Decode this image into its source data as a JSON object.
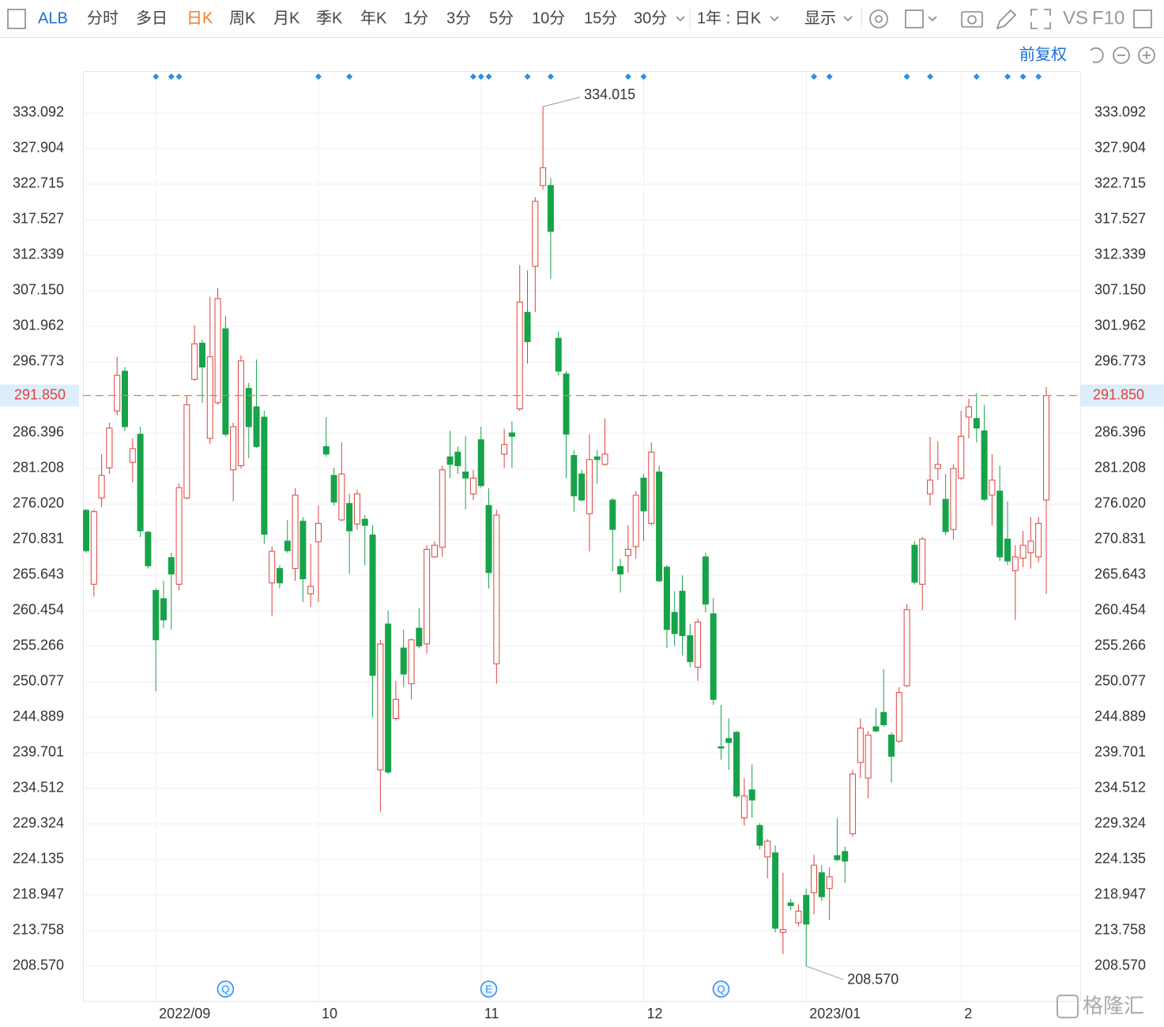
{
  "toolbar": {
    "symbol": "ALB",
    "periods": [
      "分时",
      "多日",
      "日K",
      "周K",
      "月K",
      "季K",
      "年K",
      "1分",
      "3分",
      "5分",
      "10分",
      "15分",
      "30分"
    ],
    "range": "1年 : 日K",
    "display": "显示",
    "compare": "VS",
    "f10": "F10",
    "adjust": "前复权"
  },
  "watermark": "格隆汇",
  "chart_data": {
    "type": "candlestick",
    "categories": [
      null,
      null,
      null,
      null,
      null,
      null,
      null,
      null,
      null,
      "2022/09",
      null,
      null,
      null,
      null,
      null,
      null,
      null,
      null,
      null,
      null,
      null,
      null,
      null,
      null,
      null,
      null,
      null,
      null,
      null,
      null,
      "10",
      null,
      null,
      null,
      null,
      null,
      null,
      null,
      null,
      null,
      null,
      null,
      null,
      null,
      null,
      null,
      null,
      null,
      null,
      null,
      null,
      "11",
      null,
      null,
      null,
      null,
      null,
      null,
      null,
      null,
      null,
      null,
      null,
      null,
      null,
      null,
      null,
      null,
      null,
      null,
      null,
      null,
      "12",
      null,
      null,
      null,
      null,
      null,
      null,
      null,
      null,
      null,
      null,
      null,
      null,
      null,
      null,
      null,
      null,
      null,
      null,
      null,
      null,
      "2023/01",
      null,
      null,
      null,
      null,
      null,
      null,
      null,
      null,
      null,
      null,
      null,
      null,
      null,
      null,
      null,
      null,
      null,
      null,
      null,
      "2",
      null,
      null,
      null,
      null,
      null,
      null,
      null,
      null,
      null,
      null,
      null
    ],
    "open": [
      275.1,
      264.3,
      276.9,
      281.3,
      289.6,
      295.4,
      282.1,
      286.2,
      271.9,
      263.4,
      262.2,
      268.2,
      264.3,
      276.9,
      294.2,
      299.5,
      285.6,
      290.8,
      301.6,
      281.0,
      281.6,
      292.9,
      290.2,
      288.7,
      264.5,
      266.6,
      270.6,
      266.6,
      273.5,
      262.9,
      270.5,
      284.4,
      280.2,
      273.7,
      276.1,
      273.1,
      273.8,
      271.5,
      237.2,
      258.5,
      244.7,
      255.0,
      249.8,
      257.9,
      255.6,
      268.3,
      269.7,
      282.9,
      283.6,
      280.7,
      277.5,
      285.4,
      275.8,
      252.7,
      283.3,
      286.4,
      289.9,
      304.0,
      310.7,
      322.5,
      322.5,
      300.2,
      295.0,
      283.1,
      280.4,
      274.6,
      282.9,
      281.8,
      276.6,
      266.9,
      268.5,
      269.8,
      279.8,
      273.2,
      280.7,
      266.8,
      260.2,
      263.3,
      256.8,
      252.2,
      268.3,
      260.0,
      240.6,
      241.8,
      242.7,
      230.2,
      234.3,
      229.1,
      224.5,
      225.1,
      213.5,
      217.8,
      214.9,
      218.9,
      219.3,
      222.2,
      219.9,
      224.7,
      225.3,
      227.9,
      238.3,
      236.0,
      243.5,
      245.6,
      242.3,
      241.4,
      249.5,
      270.0,
      264.3,
      277.5,
      281.2,
      276.7,
      272.3,
      279.8,
      288.7,
      288.5,
      286.7,
      277.3,
      277.9,
      270.9,
      266.3,
      268.1,
      268.9,
      268.3,
      276.6
    ],
    "high": [
      275.3,
      275.2,
      283.3,
      287.9,
      297.5,
      296.0,
      285.6,
      287.3,
      272.1,
      263.7,
      264.8,
      268.9,
      279.0,
      291.9,
      302.1,
      300.0,
      306.3,
      307.5,
      303.5,
      287.9,
      297.7,
      293.7,
      297.1,
      289.6,
      269.8,
      267.1,
      273.7,
      278.3,
      274.1,
      270.2,
      275.8,
      288.7,
      281.3,
      285.0,
      277.5,
      278.1,
      274.4,
      272.9,
      256.2,
      260.5,
      250.2,
      257.7,
      256.4,
      260.8,
      270.0,
      270.6,
      281.6,
      286.7,
      284.4,
      285.9,
      281.0,
      287.3,
      278.3,
      275.2,
      287.0,
      288.1,
      310.9,
      310.1,
      320.8,
      334.015,
      323.6,
      301.2,
      295.4,
      283.9,
      281.0,
      286.2,
      283.9,
      288.5,
      276.9,
      268.0,
      272.9,
      277.9,
      280.4,
      285.0,
      281.6,
      267.1,
      263.3,
      265.6,
      258.5,
      259.3,
      268.9,
      262.3,
      246.7,
      244.7,
      242.9,
      236.0,
      238.0,
      229.4,
      227.1,
      226.2,
      222.2,
      218.4,
      217.6,
      219.9,
      224.8,
      223.3,
      223.0,
      230.2,
      226.0,
      237.2,
      244.7,
      242.9,
      246.2,
      251.9,
      242.7,
      249.3,
      261.4,
      270.6,
      271.2,
      285.8,
      285.2,
      280.4,
      281.8,
      289.6,
      291.4,
      292.2,
      290.5,
      283.3,
      281.6,
      276.4,
      270.0,
      272.1,
      274.1,
      274.1,
      293.1
    ],
    "low": [
      268.9,
      262.5,
      275.6,
      280.4,
      289.0,
      286.7,
      279.2,
      271.2,
      266.6,
      248.7,
      257.9,
      257.7,
      263.4,
      276.7,
      294.0,
      290.8,
      284.8,
      290.5,
      285.9,
      276.4,
      281.2,
      282.7,
      284.2,
      270.2,
      259.6,
      263.7,
      268.9,
      264.8,
      261.7,
      261.0,
      261.7,
      282.9,
      275.8,
      273.5,
      265.8,
      272.3,
      267.1,
      244.9,
      231.1,
      236.6,
      244.4,
      249.3,
      247.5,
      255.0,
      254.2,
      268.2,
      268.3,
      279.8,
      280.4,
      275.2,
      276.6,
      278.4,
      263.7,
      249.8,
      281.3,
      281.3,
      289.6,
      296.5,
      304.0,
      321.9,
      308.9,
      294.8,
      279.8,
      274.9,
      276.4,
      269.1,
      279.0,
      281.6,
      266.2,
      263.1,
      266.0,
      268.0,
      270.6,
      272.9,
      264.6,
      255.0,
      255.3,
      253.9,
      252.2,
      250.2,
      260.2,
      246.7,
      238.7,
      237.2,
      233.1,
      229.1,
      230.2,
      225.6,
      221.4,
      213.5,
      210.3,
      216.7,
      214.4,
      208.57,
      216.1,
      218.1,
      215.3,
      223.9,
      220.7,
      227.4,
      236.0,
      233.1,
      242.7,
      243.5,
      235.4,
      241.2,
      249.3,
      264.3,
      260.5,
      275.8,
      279.5,
      271.5,
      270.8,
      279.5,
      285.6,
      285.0,
      276.4,
      272.9,
      267.7,
      267.1,
      259.1,
      266.8,
      266.6,
      267.5,
      262.9
    ],
    "close": [
      269.2,
      274.9,
      280.2,
      287.1,
      294.8,
      287.3,
      284.1,
      272.1,
      267.0,
      256.2,
      259.1,
      265.8,
      278.4,
      290.5,
      299.4,
      296.0,
      297.5,
      306.0,
      286.2,
      287.3,
      296.9,
      287.3,
      284.4,
      271.6,
      269.1,
      264.5,
      269.2,
      277.3,
      265.1,
      264.0,
      273.2,
      283.3,
      276.3,
      280.4,
      272.1,
      277.5,
      272.9,
      251.0,
      255.6,
      236.9,
      247.5,
      251.2,
      256.2,
      255.3,
      269.4,
      270.0,
      281.0,
      281.8,
      281.6,
      279.8,
      279.8,
      278.7,
      266.0,
      274.4,
      284.7,
      285.9,
      305.5,
      299.7,
      320.2,
      325.1,
      315.8,
      295.4,
      286.2,
      277.2,
      276.6,
      282.5,
      282.5,
      283.3,
      272.3,
      265.8,
      269.4,
      277.3,
      275.0,
      283.6,
      264.8,
      257.7,
      257.1,
      256.8,
      253.0,
      258.8,
      261.4,
      247.5,
      240.4,
      241.2,
      233.4,
      233.4,
      232.8,
      226.2,
      226.8,
      214.1,
      213.9,
      217.4,
      216.6,
      214.7,
      223.3,
      218.7,
      221.6,
      224.1,
      223.9,
      236.6,
      243.3,
      242.3,
      242.9,
      243.8,
      239.2,
      248.5,
      260.6,
      264.6,
      270.9,
      279.5,
      281.8,
      272.0,
      281.2,
      285.9,
      290.2,
      287.1,
      276.7,
      279.5,
      268.3,
      267.7,
      268.3,
      270.0,
      270.6,
      273.2,
      291.85
    ],
    "up_color": "#e0403a",
    "down_color": "#16a34a",
    "ylim": [
      203.49,
      339.2
    ],
    "yticks": [
      333.092,
      327.904,
      322.715,
      317.527,
      312.339,
      {
        "value": 307.15,
        "label": "307.150"
      },
      301.962,
      296.773,
      286.396,
      281.208,
      {
        "value": 276.02,
        "label": "276.020"
      },
      270.831,
      265.643,
      260.454,
      255.266,
      250.077,
      244.889,
      239.701,
      234.512,
      229.324,
      224.135,
      218.947,
      213.758,
      {
        "value": 208.57,
        "label": "208.570"
      }
    ],
    "grid": true,
    "last_price": {
      "value": 291.85,
      "label": "291.850",
      "color": "#f07c2a"
    },
    "annotations": [
      {
        "text": "334.015"
      },
      {
        "text": "208.570"
      }
    ],
    "events": [
      {
        "label": "Q"
      },
      {
        "label": "E"
      },
      {
        "label": "Q"
      }
    ]
  }
}
